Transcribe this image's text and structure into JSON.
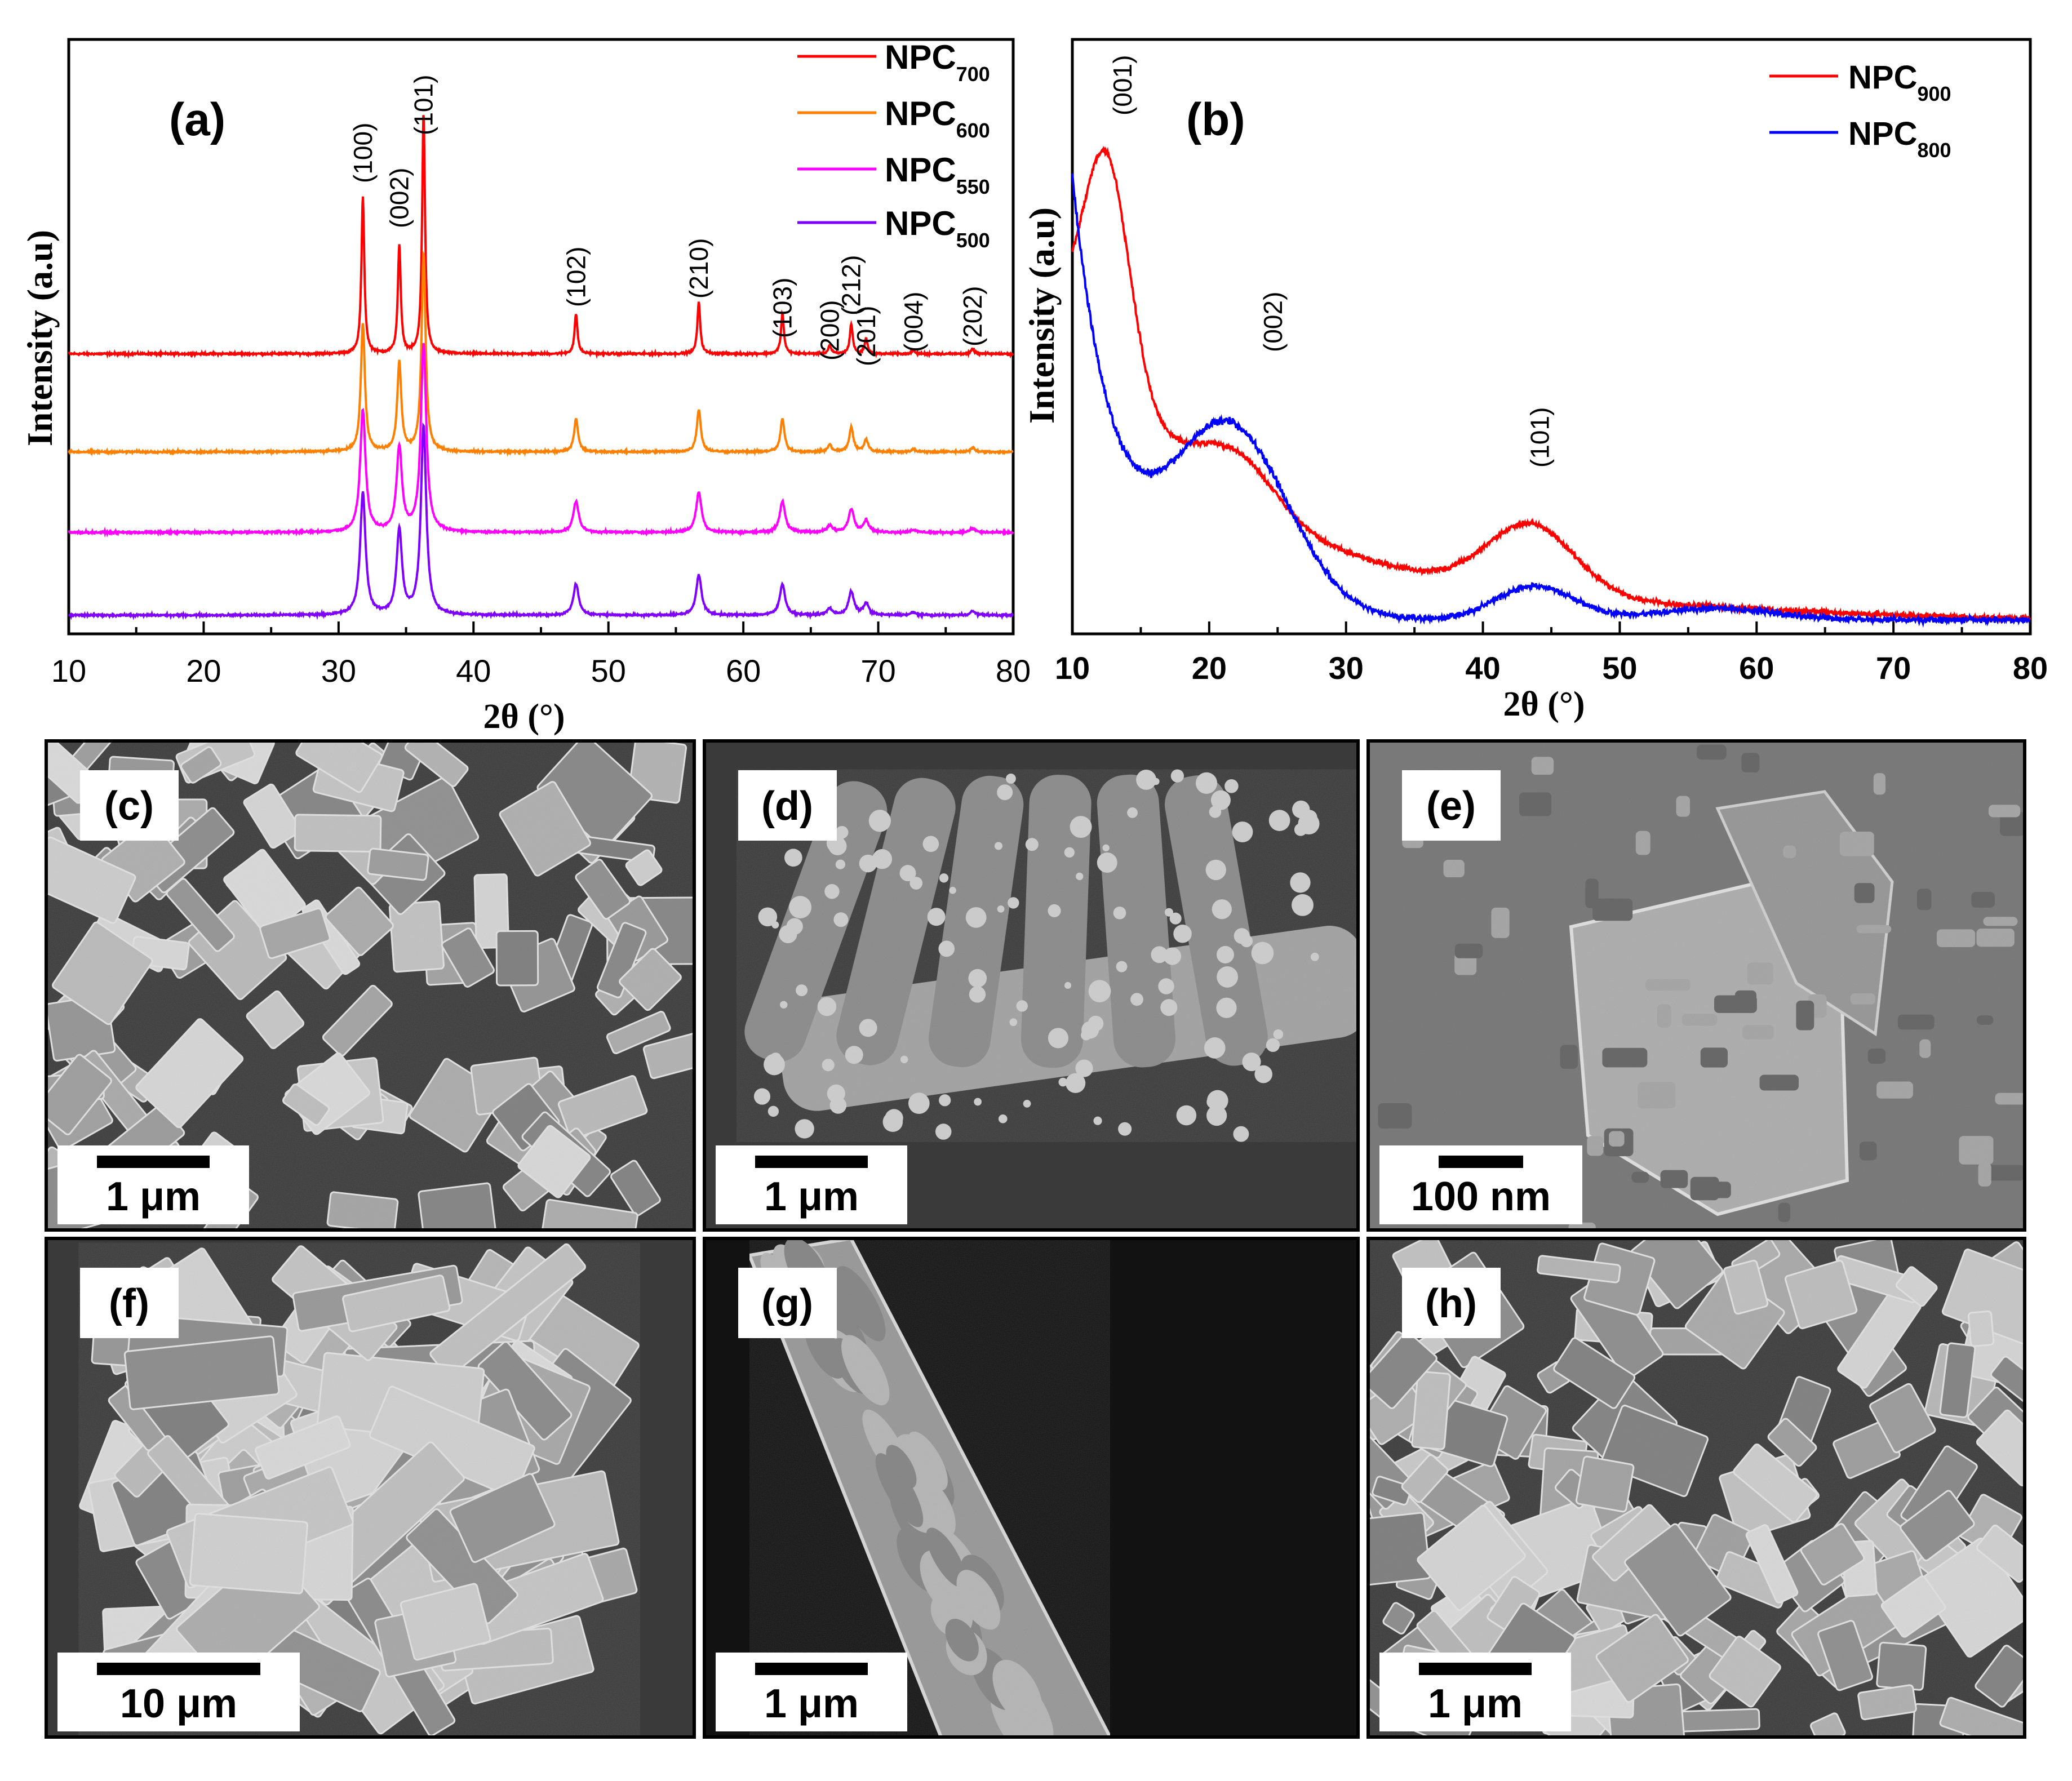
{
  "figure": {
    "panels": {
      "a": {
        "label": "(a)"
      },
      "b": {
        "label": "(b)"
      }
    },
    "sem": [
      {
        "id": "c",
        "label": "(c)",
        "scale": "1 μm"
      },
      {
        "id": "d",
        "label": "(d)",
        "scale": "1 μm"
      },
      {
        "id": "e",
        "label": "(e)",
        "scale": "100 nm"
      },
      {
        "id": "f",
        "label": "(f)",
        "scale": "10 μm"
      },
      {
        "id": "g",
        "label": "(g)",
        "scale": "1 μm"
      },
      {
        "id": "h",
        "label": "(h)",
        "scale": "1 μm"
      }
    ]
  },
  "chart_data": [
    {
      "panel": "a",
      "type": "line",
      "xlabel": "2θ (°)",
      "ylabel": "Intensity (a.u)",
      "xlim": [
        10,
        80
      ],
      "xticks": [
        10,
        20,
        30,
        40,
        50,
        60,
        70,
        80
      ],
      "legend_position": "top-right",
      "series": [
        {
          "name": "NPC",
          "sub": "700",
          "color": "#ff0000",
          "offset": 3
        },
        {
          "name": "NPC",
          "sub": "600",
          "color": "#ff8000",
          "offset": 2
        },
        {
          "name": "NPC",
          "sub": "550",
          "color": "#ff00ff",
          "offset": 1
        },
        {
          "name": "NPC",
          "sub": "500",
          "color": "#8000ff",
          "offset": 0
        }
      ],
      "peaks": [
        {
          "hkl": "(100)",
          "x": 31.8,
          "h": 0.94
        },
        {
          "hkl": "(002)",
          "x": 34.5,
          "h": 0.65
        },
        {
          "hkl": "(101)",
          "x": 36.3,
          "h": 1.45
        },
        {
          "hkl": "(102)",
          "x": 47.6,
          "h": 0.24
        },
        {
          "hkl": "(210)",
          "x": 56.7,
          "h": 0.31
        },
        {
          "hkl": "(103)",
          "x": 62.9,
          "h": 0.24
        },
        {
          "hkl": "(200)",
          "x": 66.4,
          "h": 0.05
        },
        {
          "hkl": "(212)",
          "x": 68.0,
          "h": 0.18
        },
        {
          "hkl": "(201)",
          "x": 69.1,
          "h": 0.09
        },
        {
          "hkl": "(004)",
          "x": 72.6,
          "h": 0.02
        },
        {
          "hkl": "(202)",
          "x": 77.0,
          "h": 0.03
        }
      ]
    },
    {
      "panel": "b",
      "type": "line",
      "xlabel": "2θ (°)",
      "ylabel": "Intensity (a.u)",
      "xlim": [
        10,
        80
      ],
      "xticks": [
        10,
        20,
        30,
        40,
        50,
        60,
        70,
        80
      ],
      "legend_position": "top-right",
      "series": [
        {
          "name": "NPC",
          "sub": "900",
          "color": "#ff0000"
        },
        {
          "name": "NPC",
          "sub": "800",
          "color": "#0000ff"
        }
      ],
      "peak_labels": [
        {
          "hkl": "(001)",
          "x": 13.0
        },
        {
          "hkl": "(002)",
          "x": 24.0
        },
        {
          "hkl": "(101)",
          "x": 43.5
        }
      ]
    }
  ]
}
